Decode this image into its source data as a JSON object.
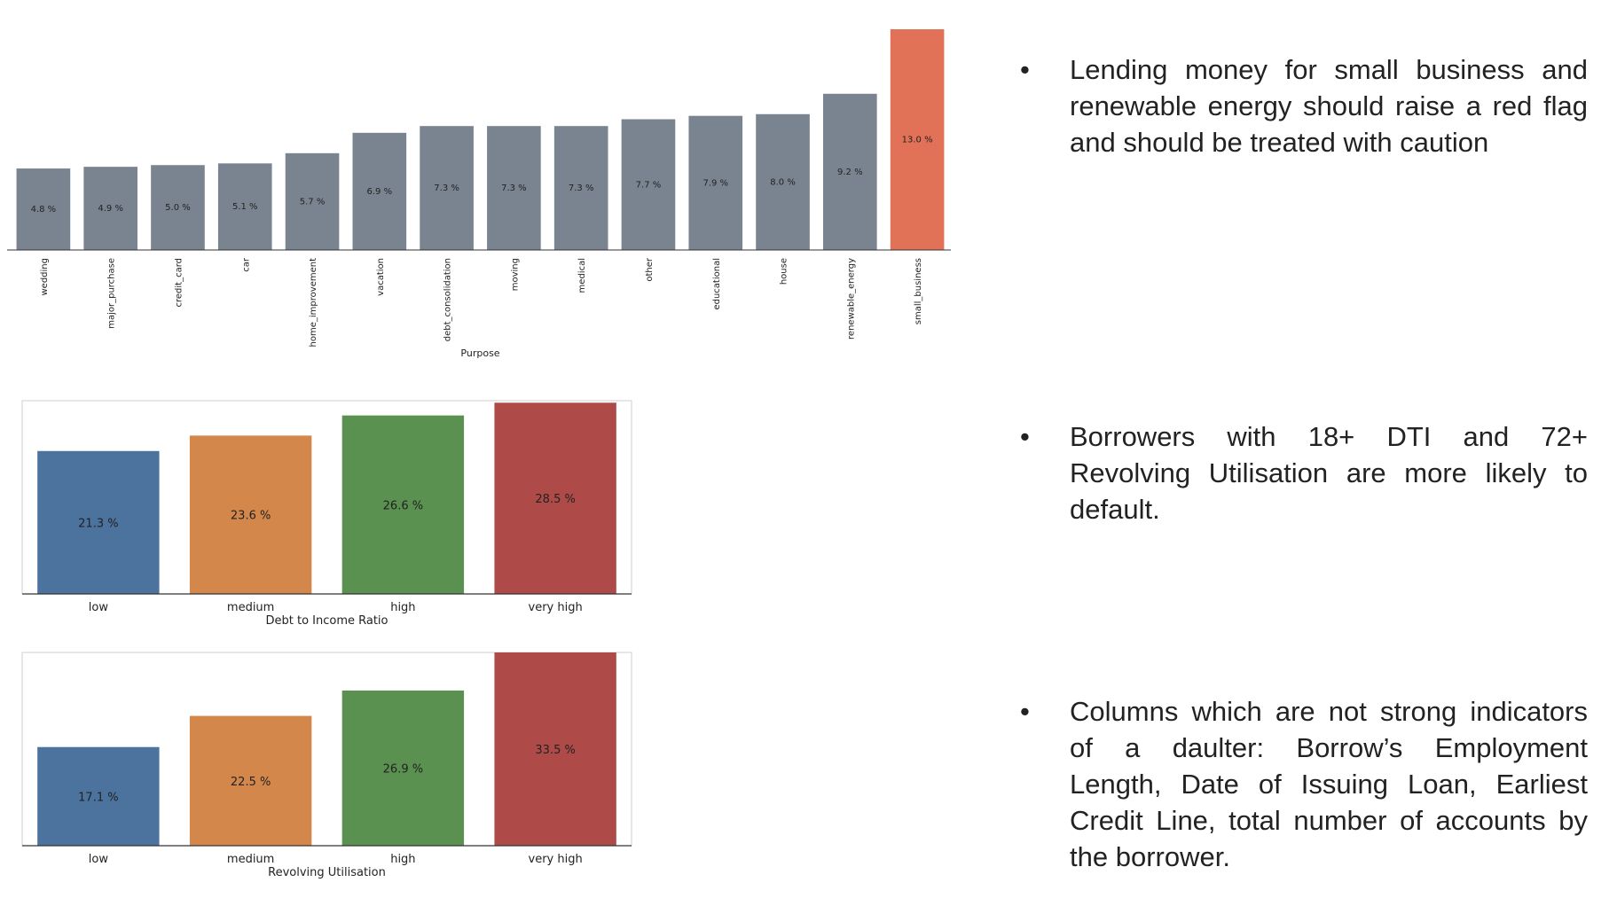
{
  "chart_data": [
    {
      "type": "bar",
      "xlabel": "Purpose",
      "categories": [
        "wedding",
        "major_purchase",
        "credit_card",
        "car",
        "home_improvement",
        "vacation",
        "debt_consolidation",
        "moving",
        "medical",
        "other",
        "educational",
        "house",
        "renewable_energy",
        "small_business"
      ],
      "values": [
        4.8,
        4.9,
        5.0,
        5.1,
        5.7,
        6.9,
        7.3,
        7.3,
        7.3,
        7.7,
        7.9,
        8.0,
        9.2,
        13.0
      ],
      "labels": [
        "4.8 %",
        "4.9 %",
        "5.0 %",
        "5.1 %",
        "5.7 %",
        "6.9 %",
        "7.3 %",
        "7.3 %",
        "7.3 %",
        "7.7 %",
        "7.9 %",
        "8.0 %",
        "9.2 %",
        "13.0 %"
      ],
      "colors": [
        "#7a8491",
        "#7a8491",
        "#7a8491",
        "#7a8491",
        "#7a8491",
        "#7a8491",
        "#7a8491",
        "#7a8491",
        "#7a8491",
        "#7a8491",
        "#7a8491",
        "#7a8491",
        "#7a8491",
        "#e27257"
      ],
      "ylim": [
        0,
        13.0
      ]
    },
    {
      "type": "bar",
      "xlabel": "Debt to Income Ratio",
      "categories": [
        "low",
        "medium",
        "high",
        "very high"
      ],
      "values": [
        21.3,
        23.6,
        26.6,
        28.5
      ],
      "labels": [
        "21.3 %",
        "23.6 %",
        "26.6 %",
        "28.5 %"
      ],
      "colors": [
        "#4c729e",
        "#d4874b",
        "#5a9150",
        "#ae4b49"
      ],
      "ylim": [
        0,
        28.8
      ]
    },
    {
      "type": "bar",
      "xlabel": "Revolving Utilisation",
      "categories": [
        "low",
        "medium",
        "high",
        "very high"
      ],
      "values": [
        17.1,
        22.5,
        26.9,
        33.5
      ],
      "labels": [
        "17.1 %",
        "22.5 %",
        "26.9 %",
        "33.5 %"
      ],
      "colors": [
        "#4c729e",
        "#d4874b",
        "#5a9150",
        "#ae4b49"
      ],
      "ylim": [
        0,
        33.5
      ]
    }
  ],
  "bullets": [
    {
      "marker": "•",
      "text": "Lending money for small business and renewable energy should raise a red flag and should be treated with caution"
    },
    {
      "marker": "•",
      "text": "Borrowers with 18+ DTI and 72+ Revolving Utilisation are more likely to default."
    },
    {
      "marker": "•",
      "text": "Columns which are not strong indicators of a daulter: Borrow’s Employment Length, Date of Issuing Loan, Earliest Credit Line, total number of accounts by the borrower."
    }
  ]
}
